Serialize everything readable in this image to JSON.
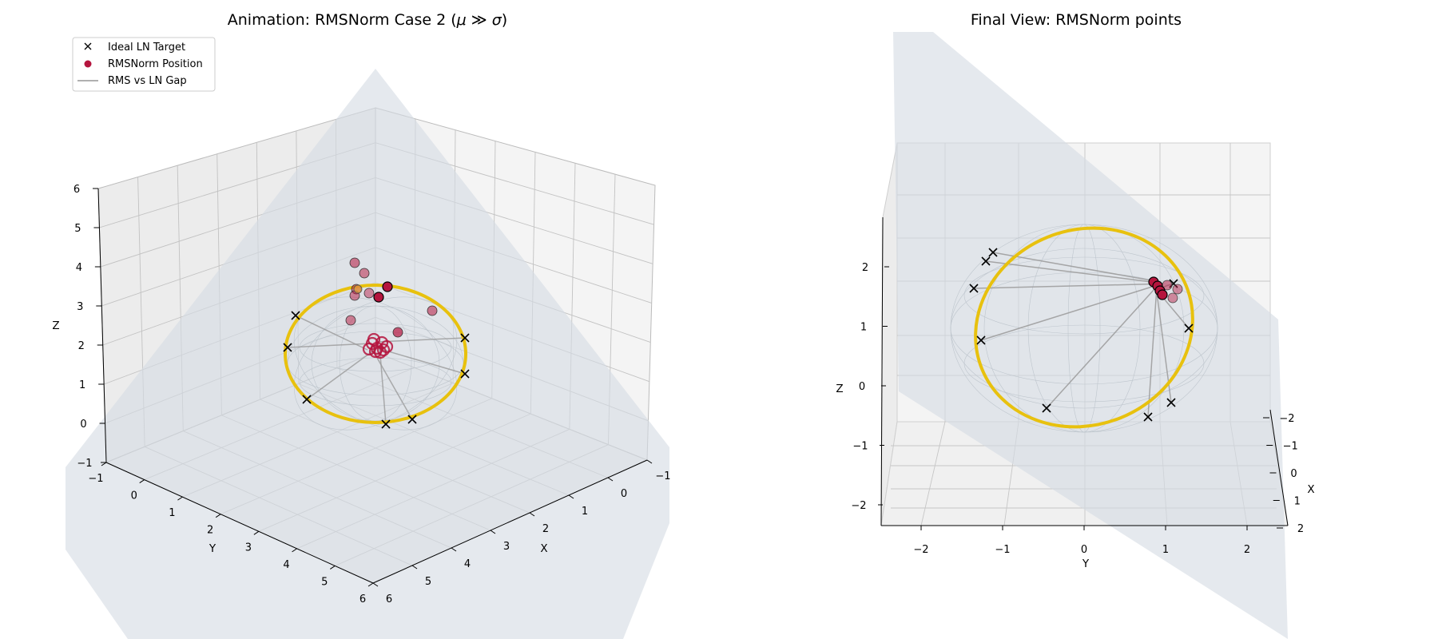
{
  "chart_data": [
    {
      "type": "scatter",
      "projection": "3d",
      "title_prefix": "Animation: RMSNorm Case 2 (",
      "title_mu": "μ",
      "title_rel": " ≫ ",
      "title_sigma": "σ",
      "title_suffix": ")",
      "xlabel": "X",
      "ylabel": "Y",
      "zlabel": "Z",
      "xlim": [
        -1,
        6
      ],
      "ylim": [
        -1,
        6
      ],
      "zlim": [
        -1,
        6
      ],
      "x_ticks": [
        "−1",
        "0",
        "1",
        "2",
        "3",
        "4",
        "5",
        "6"
      ],
      "y_ticks": [
        "−1",
        "0",
        "1",
        "2",
        "3",
        "4",
        "5",
        "6"
      ],
      "z_ticks": [
        "−1",
        "0",
        "1",
        "2",
        "3",
        "4",
        "5",
        "6"
      ],
      "grid": true,
      "legend": {
        "placement": "top-left",
        "entries": [
          {
            "label": "Ideal LN Target",
            "marker": "x",
            "color": "#000000"
          },
          {
            "label": "RMSNorm Position",
            "marker": "o",
            "color": "#b5153e"
          },
          {
            "label": "RMS vs LN Gap",
            "marker": "line",
            "color": "#808080"
          }
        ]
      },
      "colors": {
        "ring": "#e8c10e",
        "rms": "#b5153e",
        "gap": "#9a9a9a",
        "plane": "#d5dce3"
      }
    },
    {
      "type": "scatter",
      "projection": "3d",
      "title": "Final View: RMSNorm points",
      "xlabel": "X",
      "ylabel": "Y",
      "zlabel": "Z",
      "xlim": [
        -2,
        2
      ],
      "ylim": [
        -2.5,
        2.5
      ],
      "zlim": [
        -2.3,
        2.5
      ],
      "x_ticks": [
        "−2",
        "−1",
        "0",
        "1",
        "2"
      ],
      "y_ticks": [
        "−2",
        "−1",
        "0",
        "1",
        "2"
      ],
      "z_ticks": [
        "−2",
        "−1",
        "0",
        "1",
        "2"
      ],
      "grid": true,
      "colors": {
        "ring": "#e8c10e",
        "rms": "#b5153e",
        "gap": "#9a9a9a",
        "plane": "#d5dce3"
      }
    }
  ]
}
